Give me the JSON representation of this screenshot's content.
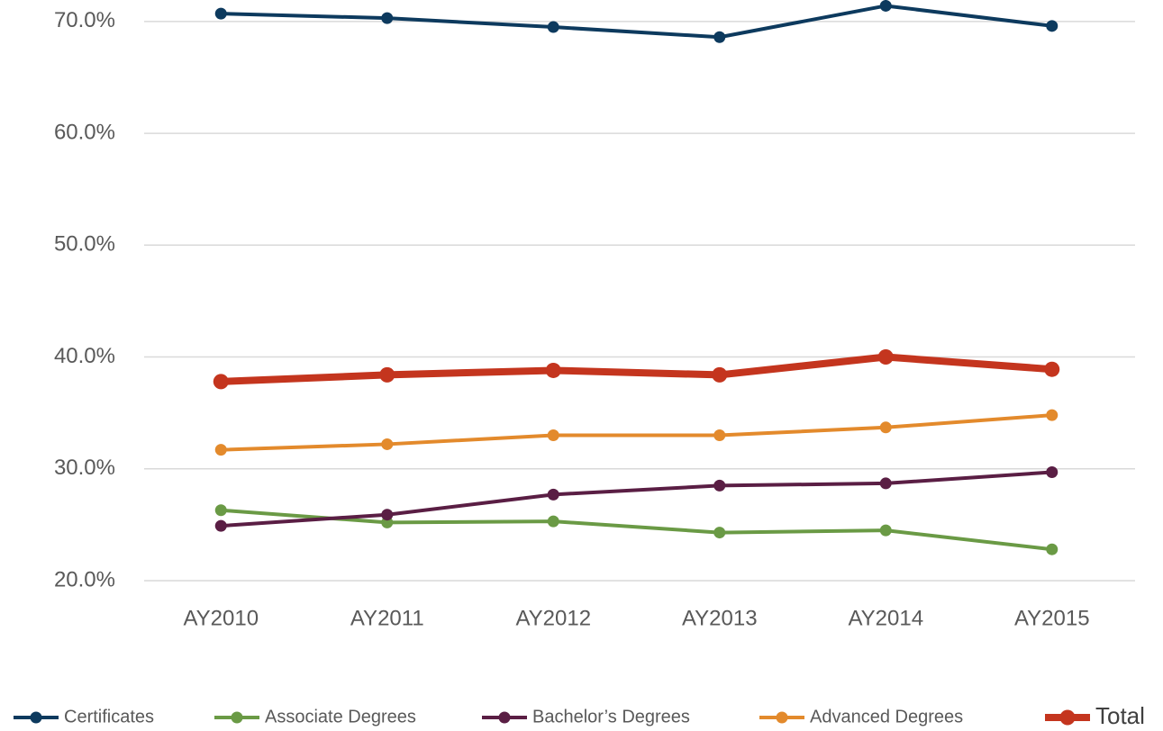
{
  "chart_data": {
    "type": "line",
    "categories": [
      "AY2010",
      "AY2011",
      "AY2012",
      "AY2013",
      "AY2014",
      "AY2015"
    ],
    "series": [
      {
        "name": "Certificates",
        "color": "#0d3a5e",
        "values": [
          70.7,
          70.3,
          69.5,
          68.6,
          71.4,
          69.6
        ]
      },
      {
        "name": "Associate Degrees",
        "color": "#6a9a45",
        "values": [
          26.3,
          25.2,
          25.3,
          24.3,
          24.5,
          22.8
        ]
      },
      {
        "name": "Bachelor’s Degrees",
        "color": "#5a1e44",
        "values": [
          24.9,
          25.9,
          27.7,
          28.5,
          28.7,
          29.7
        ]
      },
      {
        "name": "Advanced Degrees",
        "color": "#e38a2c",
        "values": [
          31.7,
          32.2,
          33.0,
          33.0,
          33.7,
          34.8
        ]
      },
      {
        "name": "Total",
        "color": "#c4351e",
        "values": [
          37.8,
          38.4,
          38.8,
          38.4,
          40.0,
          38.9
        ]
      }
    ],
    "ylim": [
      20,
      72
    ],
    "yticks": [
      {
        "value": 20,
        "label": "20.0%"
      },
      {
        "value": 30,
        "label": "30.0%"
      },
      {
        "value": 40,
        "label": "40.0%"
      },
      {
        "value": 50,
        "label": "50.0%"
      },
      {
        "value": 60,
        "label": "60.0%"
      },
      {
        "value": 70,
        "label": "70.0%"
      }
    ],
    "grid": true,
    "legend": "bottom"
  }
}
